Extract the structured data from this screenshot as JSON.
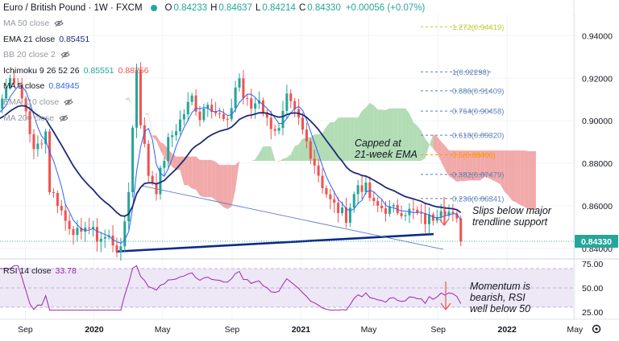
{
  "header": {
    "symbol": "Euro / British Pound · 1W · FXCM",
    "open_key": "O",
    "open": "0.84233",
    "high_key": "H",
    "high": "0.84637",
    "low_key": "L",
    "low": "0.84214",
    "close_key": "C",
    "close": "0.84330",
    "change": "+0.00056 (+0.07%)"
  },
  "indicators": [
    {
      "label": "MA 50 close",
      "value": "",
      "value2": "",
      "hidden": true
    },
    {
      "label": "EMA 21 close",
      "value": "0.85451",
      "value2": "",
      "hidden": false
    },
    {
      "label": "BB 20 close 2",
      "value": "",
      "value2": "",
      "hidden": true
    },
    {
      "label": "Ichimoku 9 26 52 26",
      "value": "0.85551",
      "value2": "0.88256",
      "hidden": false
    },
    {
      "label": "MA 5 close",
      "value": "0.84945",
      "value2": "",
      "hidden": false
    },
    {
      "label": "EMA 110 close",
      "value": "",
      "value2": "",
      "hidden": true
    },
    {
      "label": "MA 200 close",
      "value": "",
      "value2": "",
      "hidden": true
    }
  ],
  "rsi_legend": {
    "label": "RSI 14 close",
    "value": "33.78"
  },
  "current_price": "0.84330",
  "annotations": {
    "ema_note": [
      "Capped at",
      "21-week EMA"
    ],
    "trend_note": [
      "Slips below major",
      "trendline support"
    ],
    "rsi_note": [
      "Momentum is",
      "bearish, RSI",
      "well below 50"
    ]
  },
  "fib_levels": [
    {
      "label": "1.272(0.94419)",
      "value": 0.94419,
      "color": "#c0ca33"
    },
    {
      "label": "1(0.92298)",
      "value": 0.92298,
      "color": "#5b7fb5"
    },
    {
      "label": "0.886(0.91409)",
      "value": 0.91409,
      "color": "#5b7fb5"
    },
    {
      "label": "0.764(0.90458)",
      "value": 0.90458,
      "color": "#5b7fb5"
    },
    {
      "label": "0.618(0.89320)",
      "value": 0.8932,
      "color": "#5b7fb5"
    },
    {
      "label": "0.5(0.88400)",
      "value": 0.884,
      "color": "#ff9800"
    },
    {
      "label": "0.382(0.87479)",
      "value": 0.87479,
      "color": "#5b7fb5"
    },
    {
      "label": "0.236(0.86341)",
      "value": 0.86341,
      "color": "#5b7fb5"
    }
  ],
  "colors": {
    "up": "#26a69a",
    "down": "#ef5350",
    "ema21": "#1e2b7a",
    "ma5": "#2962ff",
    "cloud_bull": "#a5d6a7",
    "cloud_bear": "#ef9a9a",
    "trendline": "#0d2a8a",
    "rsi": "#9c27b0",
    "rsi_band": "#ede7f6",
    "price_tag": "#26a69a",
    "arrow": "#ef5350"
  },
  "chart_data": {
    "type": "candlestick",
    "instrument": "Euro / British Pound",
    "timeframe": "1W",
    "price_axis": {
      "min": 0.835,
      "max": 0.95,
      "ticks": [
        "0.94000",
        "0.92000",
        "0.90000",
        "0.88000",
        "0.86000",
        "0.84000"
      ],
      "tick_values": [
        0.94,
        0.92,
        0.9,
        0.88,
        0.86,
        0.84
      ]
    },
    "rsi_axis": {
      "min": 25,
      "max": 75,
      "ticks": [
        "75.00",
        "50.00",
        "25.00"
      ],
      "tick_values": [
        75,
        50,
        25
      ]
    },
    "time_axis": {
      "labels": [
        "Sep",
        "2020",
        "May",
        "Sep",
        "2021",
        "May",
        "Sep",
        "2022",
        "May"
      ],
      "dates": [
        "2019-09-01",
        "2020-01-01",
        "2020-05-01",
        "2020-09-01",
        "2021-01-01",
        "2021-05-01",
        "2021-09-01",
        "2022-01-01",
        "2022-05-01"
      ]
    },
    "weekly_close_path": [
      [
        "2019-07-01",
        0.9
      ],
      [
        "2019-08-05",
        0.92
      ],
      [
        "2019-08-12",
        0.92
      ],
      [
        "2019-09-02",
        0.905
      ],
      [
        "2019-09-16",
        0.885
      ],
      [
        "2019-10-07",
        0.895
      ],
      [
        "2019-10-14",
        0.868
      ],
      [
        "2019-10-28",
        0.862
      ],
      [
        "2019-11-11",
        0.853
      ],
      [
        "2019-12-09",
        0.845
      ],
      [
        "2019-12-16",
        0.852
      ],
      [
        "2020-01-06",
        0.845
      ],
      [
        "2020-01-27",
        0.845
      ],
      [
        "2020-02-17",
        0.838
      ],
      [
        "2020-03-02",
        0.868
      ],
      [
        "2020-03-16",
        0.925
      ],
      [
        "2020-03-23",
        0.9
      ],
      [
        "2020-04-06",
        0.875
      ],
      [
        "2020-04-20",
        0.868
      ],
      [
        "2020-05-11",
        0.89
      ],
      [
        "2020-06-01",
        0.9
      ],
      [
        "2020-06-22",
        0.911
      ],
      [
        "2020-07-06",
        0.902
      ],
      [
        "2020-07-20",
        0.91
      ],
      [
        "2020-08-03",
        0.904
      ],
      [
        "2020-08-24",
        0.898
      ],
      [
        "2020-09-07",
        0.916
      ],
      [
        "2020-09-14",
        0.92
      ],
      [
        "2020-09-21",
        0.911
      ],
      [
        "2020-10-05",
        0.906
      ],
      [
        "2020-10-19",
        0.911
      ],
      [
        "2020-11-02",
        0.9
      ],
      [
        "2020-11-23",
        0.895
      ],
      [
        "2020-12-07",
        0.91
      ],
      [
        "2020-12-28",
        0.9
      ],
      [
        "2021-01-11",
        0.89
      ],
      [
        "2021-01-25",
        0.88
      ],
      [
        "2021-02-08",
        0.87
      ],
      [
        "2021-02-22",
        0.862
      ],
      [
        "2021-03-08",
        0.858
      ],
      [
        "2021-03-22",
        0.855
      ],
      [
        "2021-04-12",
        0.87
      ],
      [
        "2021-04-26",
        0.868
      ],
      [
        "2021-05-10",
        0.86
      ],
      [
        "2021-06-07",
        0.858
      ],
      [
        "2021-06-28",
        0.858
      ],
      [
        "2021-07-19",
        0.857
      ],
      [
        "2021-08-09",
        0.853
      ],
      [
        "2021-08-23",
        0.855
      ],
      [
        "2021-09-06",
        0.86
      ],
      [
        "2021-09-20",
        0.857
      ],
      [
        "2021-10-04",
        0.852
      ],
      [
        "2021-10-11",
        0.8433
      ]
    ],
    "ema21_close": "0.85451",
    "ma5_close": "0.84945",
    "ichimoku_span_a": "0.85551",
    "ichimoku_span_b": "0.88256",
    "rsi14_close": "33.78",
    "last_close": "0.84330"
  }
}
